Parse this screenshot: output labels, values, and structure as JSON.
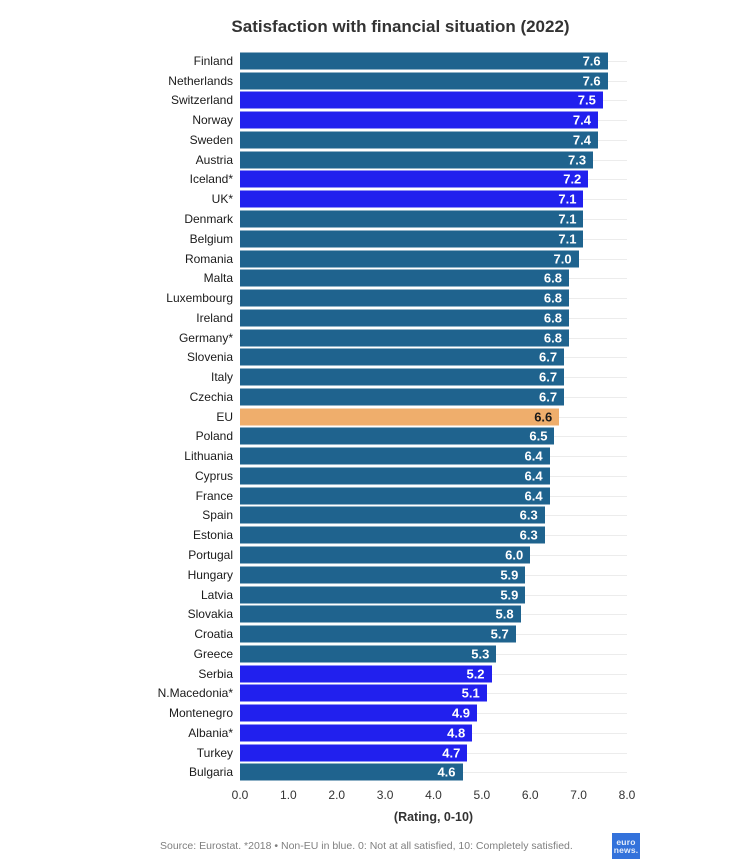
{
  "title": "Satisfaction with financial situation (2022)",
  "chart_data": {
    "type": "bar",
    "orientation": "horizontal",
    "xlabel": "(Rating, 0-10)",
    "xlim": [
      0,
      8
    ],
    "xticks": [
      "0.0",
      "1.0",
      "2.0",
      "3.0",
      "4.0",
      "5.0",
      "6.0",
      "7.0",
      "8.0"
    ],
    "grid": "row-lines",
    "palette": {
      "eu_member": "#1f638e",
      "non_eu": "#2120ee",
      "eu_aggregate": "#efae6c"
    },
    "value_label_colors": {
      "default": "#ffffff",
      "eu_aggregate": "#1a1a1a"
    },
    "bars": [
      {
        "label": "Finland",
        "value": 7.6,
        "group": "eu_member"
      },
      {
        "label": "Netherlands",
        "value": 7.6,
        "group": "eu_member"
      },
      {
        "label": "Switzerland",
        "value": 7.5,
        "group": "non_eu"
      },
      {
        "label": "Norway",
        "value": 7.4,
        "group": "non_eu"
      },
      {
        "label": "Sweden",
        "value": 7.4,
        "group": "eu_member"
      },
      {
        "label": "Austria",
        "value": 7.3,
        "group": "eu_member"
      },
      {
        "label": "Iceland*",
        "value": 7.2,
        "group": "non_eu"
      },
      {
        "label": "UK*",
        "value": 7.1,
        "group": "non_eu"
      },
      {
        "label": "Denmark",
        "value": 7.1,
        "group": "eu_member"
      },
      {
        "label": "Belgium",
        "value": 7.1,
        "group": "eu_member"
      },
      {
        "label": "Romania",
        "value": 7.0,
        "group": "eu_member"
      },
      {
        "label": "Malta",
        "value": 6.8,
        "group": "eu_member"
      },
      {
        "label": "Luxembourg",
        "value": 6.8,
        "group": "eu_member"
      },
      {
        "label": "Ireland",
        "value": 6.8,
        "group": "eu_member"
      },
      {
        "label": "Germany*",
        "value": 6.8,
        "group": "eu_member"
      },
      {
        "label": "Slovenia",
        "value": 6.7,
        "group": "eu_member"
      },
      {
        "label": "Italy",
        "value": 6.7,
        "group": "eu_member"
      },
      {
        "label": "Czechia",
        "value": 6.7,
        "group": "eu_member"
      },
      {
        "label": "EU",
        "value": 6.6,
        "group": "eu_aggregate"
      },
      {
        "label": "Poland",
        "value": 6.5,
        "group": "eu_member"
      },
      {
        "label": "Lithuania",
        "value": 6.4,
        "group": "eu_member"
      },
      {
        "label": "Cyprus",
        "value": 6.4,
        "group": "eu_member"
      },
      {
        "label": "France",
        "value": 6.4,
        "group": "eu_member"
      },
      {
        "label": "Spain",
        "value": 6.3,
        "group": "eu_member"
      },
      {
        "label": "Estonia",
        "value": 6.3,
        "group": "eu_member"
      },
      {
        "label": "Portugal",
        "value": 6.0,
        "group": "eu_member"
      },
      {
        "label": "Hungary",
        "value": 5.9,
        "group": "eu_member"
      },
      {
        "label": "Latvia",
        "value": 5.9,
        "group": "eu_member"
      },
      {
        "label": "Slovakia",
        "value": 5.8,
        "group": "eu_member"
      },
      {
        "label": "Croatia",
        "value": 5.7,
        "group": "eu_member"
      },
      {
        "label": "Greece",
        "value": 5.3,
        "group": "eu_member"
      },
      {
        "label": "Serbia",
        "value": 5.2,
        "group": "non_eu"
      },
      {
        "label": "N.Macedonia*",
        "value": 5.1,
        "group": "non_eu"
      },
      {
        "label": "Montenegro",
        "value": 4.9,
        "group": "non_eu"
      },
      {
        "label": "Albania*",
        "value": 4.8,
        "group": "non_eu"
      },
      {
        "label": "Turkey",
        "value": 4.7,
        "group": "non_eu"
      },
      {
        "label": "Bulgaria",
        "value": 4.6,
        "group": "eu_member"
      }
    ]
  },
  "footer": {
    "source_note": "Source: Eurostat. *2018 • Non-EU in blue. 0: Not at all satisfied, 10: Completely satisfied.",
    "logo_line1": "euro",
    "logo_line2": "news."
  }
}
